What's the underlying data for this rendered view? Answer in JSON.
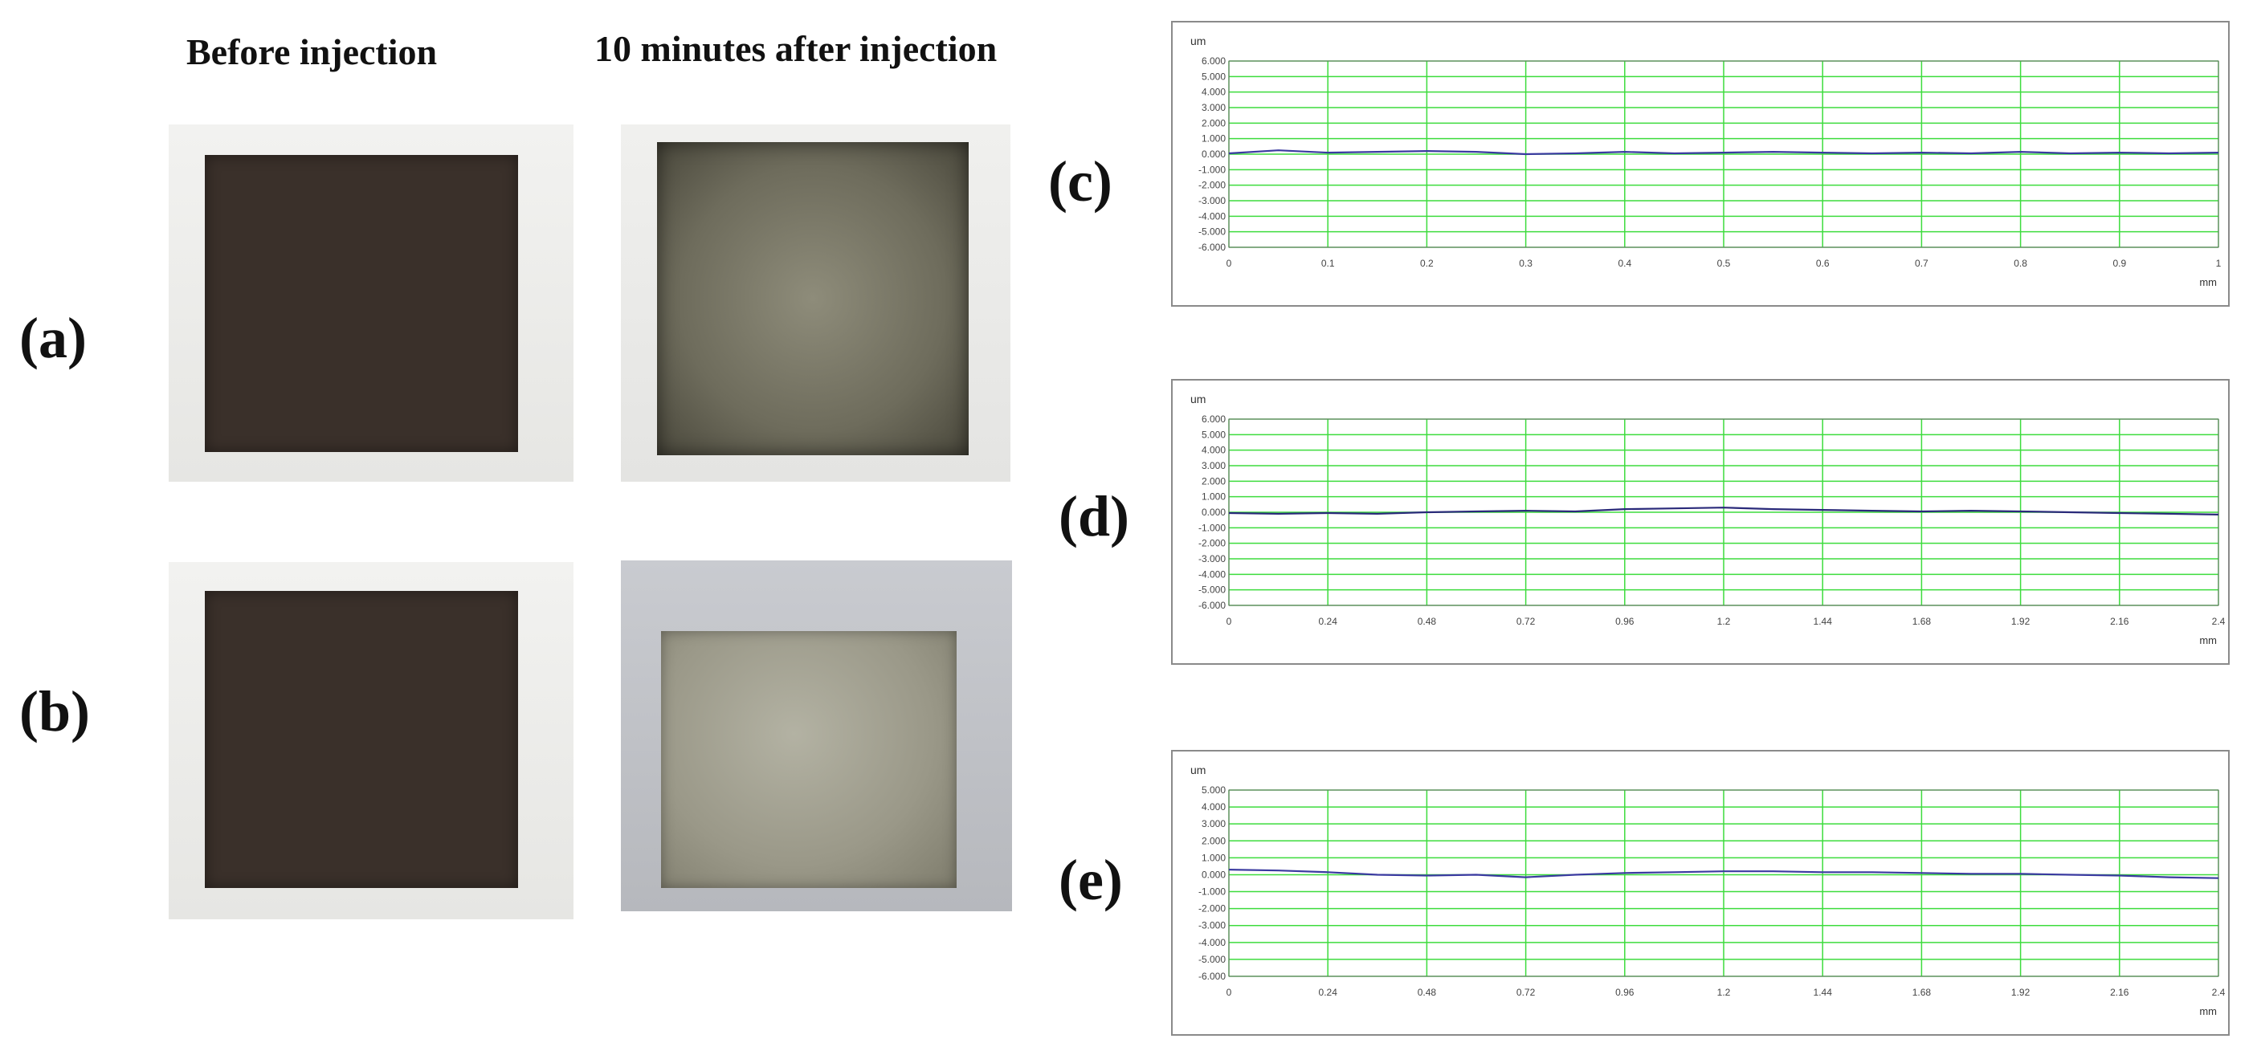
{
  "figure": {
    "columns": {
      "before": "Before injection",
      "after": "10 minutes after injection"
    },
    "panel_labels": {
      "a": "(a)",
      "b": "(b)",
      "c": "(c)",
      "d": "(d)",
      "e": "(e)"
    }
  },
  "chart_data": [
    {
      "panel": "(c)",
      "type": "line",
      "yunit": "um",
      "xunit": "mm",
      "ylim": [
        -6,
        6
      ],
      "xlim": [
        0,
        1
      ],
      "yticks": [
        "6.000",
        "5.000",
        "4.000",
        "3.000",
        "2.000",
        "1.000",
        "0.000",
        "-1.000",
        "-2.000",
        "-3.000",
        "-4.000",
        "-5.000",
        "-6.000"
      ],
      "xticks": [
        "0",
        "0.1",
        "0.2",
        "0.3",
        "0.4",
        "0.5",
        "0.6",
        "0.7",
        "0.8",
        "0.9",
        "1"
      ],
      "grid": true,
      "series": [
        {
          "color": "#3a3aa0",
          "x": [
            0,
            0.05,
            0.1,
            0.15,
            0.2,
            0.25,
            0.3,
            0.35,
            0.4,
            0.45,
            0.5,
            0.55,
            0.6,
            0.65,
            0.7,
            0.75,
            0.8,
            0.85,
            0.9,
            0.95,
            1.0
          ],
          "y": [
            0.05,
            0.25,
            0.1,
            0.15,
            0.2,
            0.15,
            0.0,
            0.05,
            0.15,
            0.05,
            0.1,
            0.15,
            0.1,
            0.05,
            0.1,
            0.05,
            0.15,
            0.05,
            0.1,
            0.05,
            0.1
          ]
        }
      ]
    },
    {
      "panel": "(d)",
      "type": "line",
      "yunit": "um",
      "xunit": "mm",
      "ylim": [
        -6,
        6
      ],
      "xlim": [
        0,
        2.4
      ],
      "yticks": [
        "6.000",
        "5.000",
        "4.000",
        "3.000",
        "2.000",
        "1.000",
        "0.000",
        "-1.000",
        "-2.000",
        "-3.000",
        "-4.000",
        "-5.000",
        "-6.000"
      ],
      "xticks": [
        "0",
        "0.24",
        "0.48",
        "0.72",
        "0.96",
        "1.2",
        "1.44",
        "1.68",
        "1.92",
        "2.16",
        "2.4"
      ],
      "grid": true,
      "series": [
        {
          "color": "#2a2a7a",
          "x": [
            0,
            0.12,
            0.24,
            0.36,
            0.48,
            0.6,
            0.72,
            0.84,
            0.96,
            1.08,
            1.2,
            1.32,
            1.44,
            1.56,
            1.68,
            1.8,
            1.92,
            2.04,
            2.16,
            2.28,
            2.4
          ],
          "y": [
            -0.05,
            -0.1,
            -0.05,
            -0.1,
            0.0,
            0.05,
            0.1,
            0.05,
            0.2,
            0.25,
            0.3,
            0.2,
            0.15,
            0.1,
            0.05,
            0.1,
            0.05,
            0.0,
            -0.05,
            -0.1,
            -0.15
          ]
        }
      ]
    },
    {
      "panel": "(e)",
      "type": "line",
      "yunit": "um",
      "xunit": "mm",
      "ylim": [
        -6,
        5
      ],
      "xlim": [
        0,
        2.4
      ],
      "yticks": [
        "5.000",
        "4.000",
        "3.000",
        "2.000",
        "1.000",
        "0.000",
        "-1.000",
        "-2.000",
        "-3.000",
        "-4.000",
        "-5.000",
        "-6.000"
      ],
      "xticks": [
        "0",
        "0.24",
        "0.48",
        "0.72",
        "0.96",
        "1.2",
        "1.44",
        "1.68",
        "1.92",
        "2.16",
        "2.4"
      ],
      "grid": true,
      "series": [
        {
          "color": "#3a3aa0",
          "x": [
            0,
            0.12,
            0.24,
            0.36,
            0.48,
            0.6,
            0.72,
            0.84,
            0.96,
            1.08,
            1.2,
            1.32,
            1.44,
            1.56,
            1.68,
            1.8,
            1.92,
            2.04,
            2.16,
            2.28,
            2.4
          ],
          "y": [
            0.3,
            0.25,
            0.15,
            0.0,
            -0.05,
            0.0,
            -0.15,
            0.0,
            0.1,
            0.15,
            0.2,
            0.2,
            0.15,
            0.15,
            0.1,
            0.05,
            0.05,
            0.0,
            -0.05,
            -0.15,
            -0.2
          ]
        }
      ]
    }
  ]
}
